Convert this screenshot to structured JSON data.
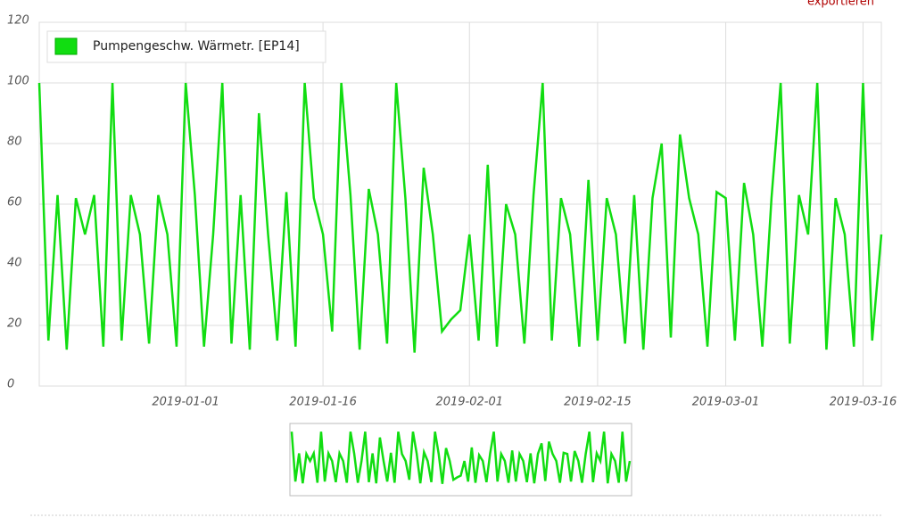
{
  "export_label": "exportieren",
  "chart_data": {
    "type": "line",
    "x": [
      "2018-12-16",
      "2018-12-17",
      "2018-12-18",
      "2018-12-19",
      "2018-12-20",
      "2018-12-21",
      "2018-12-22",
      "2018-12-23",
      "2018-12-24",
      "2018-12-25",
      "2018-12-26",
      "2018-12-27",
      "2018-12-28",
      "2018-12-29",
      "2018-12-30",
      "2018-12-31",
      "2019-01-01",
      "2019-01-02",
      "2019-01-03",
      "2019-01-04",
      "2019-01-05",
      "2019-01-06",
      "2019-01-07",
      "2019-01-08",
      "2019-01-09",
      "2019-01-10",
      "2019-01-11",
      "2019-01-12",
      "2019-01-13",
      "2019-01-14",
      "2019-01-15",
      "2019-01-16",
      "2019-01-17",
      "2019-01-18",
      "2019-01-19",
      "2019-01-20",
      "2019-01-21",
      "2019-01-22",
      "2019-01-23",
      "2019-01-24",
      "2019-01-25",
      "2019-01-26",
      "2019-01-27",
      "2019-01-28",
      "2019-01-29",
      "2019-01-30",
      "2019-01-31",
      "2019-02-01",
      "2019-02-02",
      "2019-02-03",
      "2019-02-04",
      "2019-02-05",
      "2019-02-06",
      "2019-02-07",
      "2019-02-08",
      "2019-02-09",
      "2019-02-10",
      "2019-02-11",
      "2019-02-12",
      "2019-02-13",
      "2019-02-14",
      "2019-02-15",
      "2019-02-16",
      "2019-02-17",
      "2019-02-18",
      "2019-02-19",
      "2019-02-20",
      "2019-02-21",
      "2019-02-22",
      "2019-02-23",
      "2019-02-24",
      "2019-02-25",
      "2019-02-26",
      "2019-02-27",
      "2019-02-28",
      "2019-03-01",
      "2019-03-02",
      "2019-03-03",
      "2019-03-04",
      "2019-03-05",
      "2019-03-06",
      "2019-03-07",
      "2019-03-08",
      "2019-03-09",
      "2019-03-10",
      "2019-03-11",
      "2019-03-12",
      "2019-03-13",
      "2019-03-14",
      "2019-03-15",
      "2019-03-16",
      "2019-03-17",
      "2019-03-18"
    ],
    "series": [
      {
        "name": "Pumpengeschw. Wärmetr. [EP14]",
        "color": "#11dd11",
        "values": [
          100,
          15,
          63,
          12,
          62,
          50,
          63,
          13,
          100,
          15,
          63,
          50,
          14,
          63,
          50,
          13,
          100,
          63,
          13,
          50,
          100,
          14,
          63,
          12,
          90,
          50,
          15,
          64,
          13,
          100,
          62,
          50,
          18,
          100,
          63,
          12,
          65,
          50,
          14,
          100,
          62,
          11,
          72,
          50,
          18,
          22,
          25,
          50,
          15,
          73,
          13,
          60,
          50,
          14,
          63,
          100,
          15,
          62,
          50,
          13,
          68,
          15,
          62,
          50,
          14,
          63,
          12,
          62,
          80,
          16,
          83,
          62,
          50,
          13,
          64,
          62,
          15,
          67,
          50,
          13,
          62,
          100,
          14,
          63,
          50,
          100,
          12,
          62,
          50,
          13,
          100,
          15,
          50
        ]
      }
    ],
    "xlim": [
      "2018-12-16",
      "2019-03-18"
    ],
    "xticks": [
      "2019-01-01",
      "2019-01-16",
      "2019-02-01",
      "2019-02-15",
      "2019-03-01",
      "2019-03-16"
    ],
    "ylim": [
      0,
      120
    ],
    "yticks": [
      0,
      20,
      40,
      60,
      80,
      100,
      120
    ],
    "grid": true,
    "legend": "top-left"
  }
}
